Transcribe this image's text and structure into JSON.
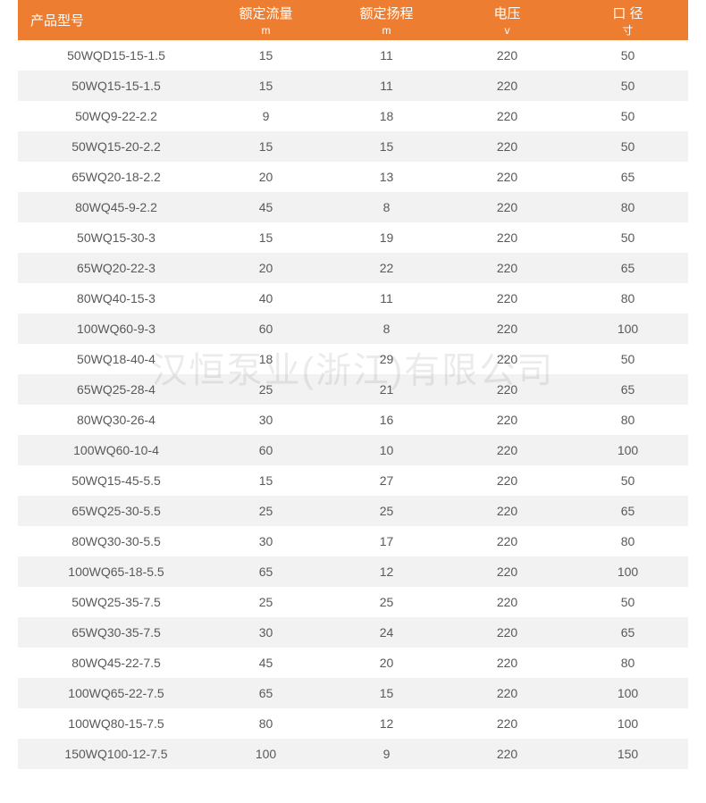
{
  "watermark": "汉恒泵业(浙江)有限公司",
  "table": {
    "header_bg": "#ed7d31",
    "header_color": "#ffffff",
    "row_odd_bg": "#ffffff",
    "row_even_bg": "#f2f2f2",
    "cell_color": "#595959",
    "columns": [
      {
        "label": "产品型号",
        "unit": ""
      },
      {
        "label": "额定流量",
        "unit": "m"
      },
      {
        "label": "额定扬程",
        "unit": "m"
      },
      {
        "label": "电压",
        "unit": "v"
      },
      {
        "label": "口 径",
        "unit": "寸"
      }
    ],
    "rows": [
      [
        "50WQD15-15-1.5",
        "15",
        "11",
        "220",
        "50"
      ],
      [
        "50WQ15-15-1.5",
        "15",
        "11",
        "220",
        "50"
      ],
      [
        "50WQ9-22-2.2",
        "9",
        "18",
        "220",
        "50"
      ],
      [
        "50WQ15-20-2.2",
        "15",
        "15",
        "220",
        "50"
      ],
      [
        "65WQ20-18-2.2",
        "20",
        "13",
        "220",
        "65"
      ],
      [
        "80WQ45-9-2.2",
        "45",
        "8",
        "220",
        "80"
      ],
      [
        "50WQ15-30-3",
        "15",
        "19",
        "220",
        "50"
      ],
      [
        "65WQ20-22-3",
        "20",
        "22",
        "220",
        "65"
      ],
      [
        "80WQ40-15-3",
        "40",
        "11",
        "220",
        "80"
      ],
      [
        "100WQ60-9-3",
        "60",
        "8",
        "220",
        "100"
      ],
      [
        "50WQ18-40-4",
        "18",
        "29",
        "220",
        "50"
      ],
      [
        "65WQ25-28-4",
        "25",
        "21",
        "220",
        "65"
      ],
      [
        "80WQ30-26-4",
        "30",
        "16",
        "220",
        "80"
      ],
      [
        "100WQ60-10-4",
        "60",
        "10",
        "220",
        "100"
      ],
      [
        "50WQ15-45-5.5",
        "15",
        "27",
        "220",
        "50"
      ],
      [
        "65WQ25-30-5.5",
        "25",
        "25",
        "220",
        "65"
      ],
      [
        "80WQ30-30-5.5",
        "30",
        "17",
        "220",
        "80"
      ],
      [
        "100WQ65-18-5.5",
        "65",
        "12",
        "220",
        "100"
      ],
      [
        "50WQ25-35-7.5",
        "25",
        "25",
        "220",
        "50"
      ],
      [
        "65WQ30-35-7.5",
        "30",
        "24",
        "220",
        "65"
      ],
      [
        "80WQ45-22-7.5",
        "45",
        "20",
        "220",
        "80"
      ],
      [
        "100WQ65-22-7.5",
        "65",
        "15",
        "220",
        "100"
      ],
      [
        "100WQ80-15-7.5",
        "80",
        "12",
        "220",
        "100"
      ],
      [
        "150WQ100-12-7.5",
        "100",
        "9",
        "220",
        "150"
      ]
    ]
  }
}
